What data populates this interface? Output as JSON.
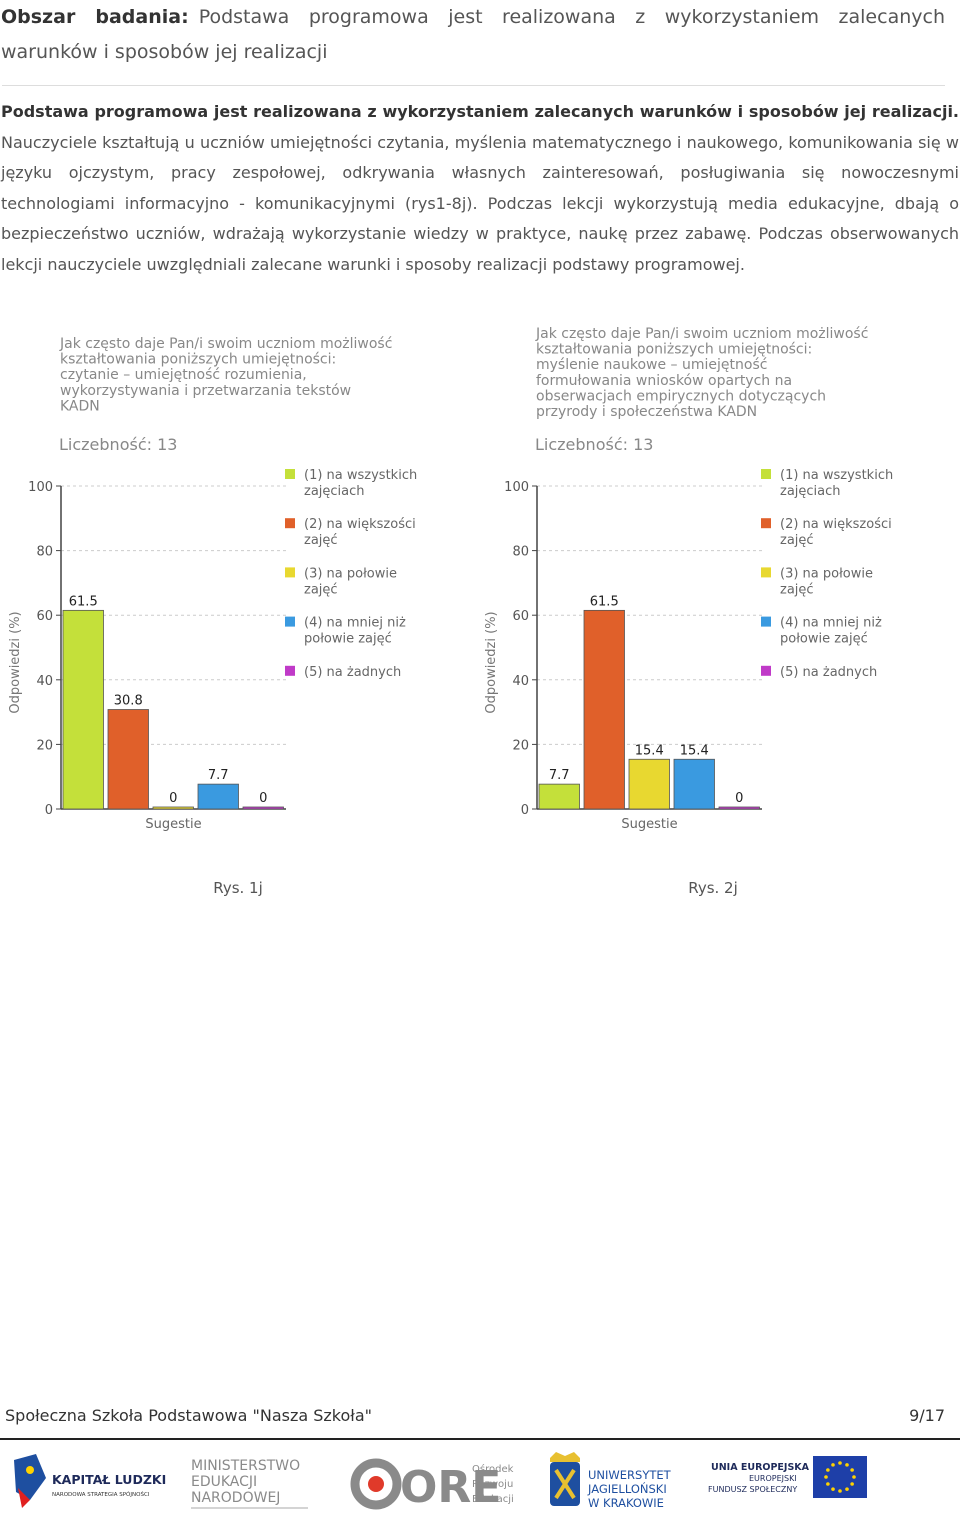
{
  "header": {
    "label": "Obszar badania:",
    "text": "Podstawa programowa jest realizowana z wykorzystaniem zalecanych warunków i sposobów jej realizacji"
  },
  "body": {
    "lead": "Podstawa programowa jest realizowana z wykorzystaniem zalecanych warunków i sposobów jej realizacji.",
    "text": "Nauczyciele kształtują u uczniów umiejętności czytania, myślenia matematycznego i naukowego, komunikowania się w języku ojczystym, pracy zespołowej, odkrywania własnych zainteresowań, posługiwania się nowoczesnymi technologiami informacyjno - komunikacyjnymi (rys1-8j). Podczas lekcji wykorzystują media edukacyjne, dbają o bezpieczeństwo uczniów, wdrażają wykorzystanie wiedzy w praktyce, naukę przez zabawę. Podczas obserwowanych lekcji nauczyciele uwzględniali zalecane warunki i sposoby realizacji podstawy programowej."
  },
  "chart_data": [
    {
      "type": "bar",
      "title_lines": [
        "Jak często daje Pan/i swoim uczniom możliwość",
        "kształtowania poniższych umiejętności:",
        "czytanie – umiejętność rozumienia,",
        "wykorzystywania i przetwarzania tekstów",
        "KADN"
      ],
      "count_label": "Liczebność: 13",
      "ylabel": "Odpowiedzi (%)",
      "xlabel": "Sugestie",
      "ylim": [
        0,
        100
      ],
      "yticks": [
        0,
        20,
        40,
        60,
        80,
        100
      ],
      "grid": true,
      "legend_position": "right",
      "categories": [
        "(1) na wszystkich zajęciach",
        "(2) na większości zajęć",
        "(3) na połowie zajęć",
        "(4) na mniej niż połowie zajęć",
        "(5) na żadnych"
      ],
      "values": [
        61.5,
        30.8,
        0,
        7.7,
        0
      ],
      "value_labels": [
        "61.5",
        "30.8",
        "0",
        "7.7",
        "0"
      ],
      "colors": [
        "#c4e03a",
        "#e0602a",
        "#e8d830",
        "#3a9ae0",
        "#c03ac8"
      ],
      "caption": "Rys. 1j"
    },
    {
      "type": "bar",
      "title_lines": [
        "Jak często daje Pan/i swoim uczniom możliwość",
        "kształtowania poniższych umiejętności:",
        "myślenie naukowe – umiejętność",
        "formułowania wniosków opartych na",
        "obserwacjach empirycznych dotyczących",
        "przyrody i społeczeństwa KADN"
      ],
      "count_label": "Liczebność: 13",
      "ylabel": "Odpowiedzi (%)",
      "xlabel": "Sugestie",
      "ylim": [
        0,
        100
      ],
      "yticks": [
        0,
        20,
        40,
        60,
        80,
        100
      ],
      "grid": true,
      "legend_position": "right",
      "categories": [
        "(1) na wszystkich zajęciach",
        "(2) na większości zajęć",
        "(3) na połowie zajęć",
        "(4) na mniej niż połowie zajęć",
        "(5) na żadnych"
      ],
      "values": [
        7.7,
        61.5,
        15.4,
        15.4,
        0
      ],
      "value_labels": [
        "7.7",
        "61.5",
        "15.4",
        "15.4",
        "0"
      ],
      "colors": [
        "#c4e03a",
        "#e0602a",
        "#e8d830",
        "#3a9ae0",
        "#c03ac8"
      ],
      "caption": "Rys. 2j"
    }
  ],
  "legend_lines": [
    [
      "(1) na wszystkich",
      "zajęciach"
    ],
    [
      "(2) na większości",
      "zajęć"
    ],
    [
      "(3) na połowie",
      "zajęć"
    ],
    [
      "(4) na mniej niż",
      "połowie zajęć"
    ],
    [
      "(5) na żadnych"
    ]
  ],
  "footer": {
    "school": "Społeczna Szkoła Podstawowa \"Nasza Szkoła\"",
    "page": "9/17"
  },
  "logos": {
    "kl_title": "KAPITAŁ LUDZKI",
    "kl_sub": "NARODOWA STRATEGIA SPÓJNOŚCI",
    "men_lines": [
      "MINISTERSTWO",
      "EDUKACJI",
      "NARODOWEJ"
    ],
    "ore_word": "ORE",
    "ore_lines": [
      "Ośrodek",
      "Rozwoju",
      "Edukacji"
    ],
    "uj_lines": [
      "UNIWERSYTET",
      "JAGIELLOŃSKI",
      "W KRAKOWIE"
    ],
    "ue_lines": [
      "UNIA EUROPEJSKA",
      "EUROPEJSKI",
      "FUNDUSZ SPOŁECZNY"
    ]
  }
}
